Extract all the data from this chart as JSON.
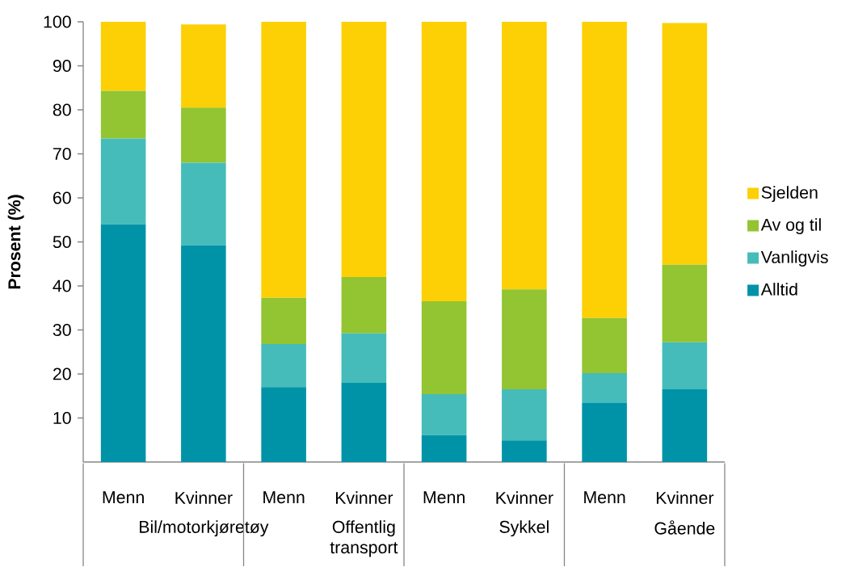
{
  "chart_data": {
    "type": "bar",
    "stacked": true,
    "ylabel": "Prosent (%)",
    "categories": [
      "Menn",
      "Kvinner",
      "Menn",
      "Kvinner",
      "Menn",
      "Kvinner",
      "Menn",
      "Kvinner"
    ],
    "series": [
      {
        "name": "Alltid",
        "color": "#0093a7",
        "values": [
          54.0,
          49.2,
          17.0,
          18.0,
          6.1,
          4.9,
          13.4,
          16.5
        ]
      },
      {
        "name": "Vanligvis",
        "color": "#45bcb9",
        "values": [
          19.5,
          18.8,
          9.8,
          11.2,
          9.3,
          11.6,
          6.8,
          10.7
        ]
      },
      {
        "name": "Av og til",
        "color": "#93c432",
        "values": [
          10.8,
          12.5,
          10.5,
          12.8,
          21.1,
          22.7,
          12.5,
          17.6
        ]
      },
      {
        "name": "Sjelden",
        "color": "#fcd005",
        "values": [
          15.7,
          18.9,
          62.7,
          58.0,
          63.5,
          60.8,
          67.3,
          54.9
        ]
      }
    ],
    "annotations": [
      "Bil/motorkjøretøy",
      "Offentlig transport",
      "Sykkel",
      "Gående"
    ],
    "ylim": [
      0,
      100
    ],
    "yticks": [
      10,
      20,
      30,
      40,
      50,
      60,
      70,
      80,
      90,
      100
    ],
    "grid": false,
    "legend": "right"
  }
}
